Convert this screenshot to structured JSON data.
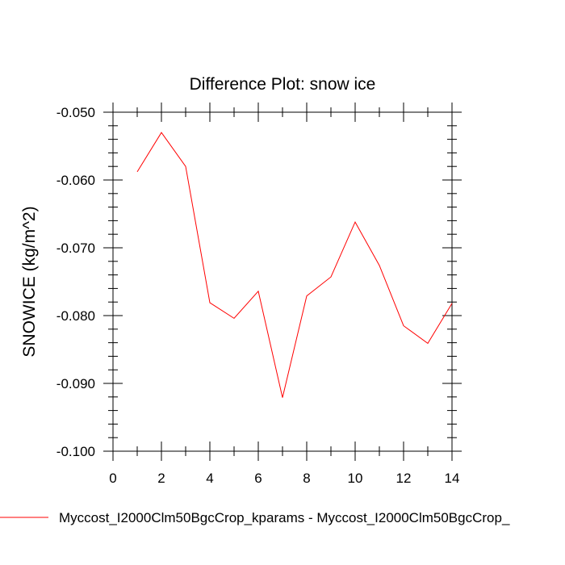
{
  "chart_data": {
    "type": "line",
    "title": "Difference Plot: snow ice",
    "xlabel": "",
    "ylabel": "SNOWICE  (kg/m^2)",
    "xlim": [
      0,
      14
    ],
    "ylim": [
      -0.1,
      -0.05
    ],
    "x_ticks": [
      0,
      2,
      4,
      6,
      8,
      10,
      12,
      14
    ],
    "x_tick_labels": [
      "0",
      "2",
      "4",
      "6",
      "8",
      "10",
      "12",
      "14"
    ],
    "x_minor_step": 1,
    "y_ticks": [
      -0.1,
      -0.09,
      -0.08,
      -0.07,
      -0.06,
      -0.05
    ],
    "y_tick_labels": [
      "-0.100",
      "-0.090",
      "-0.080",
      "-0.070",
      "-0.060",
      "-0.050"
    ],
    "y_minor_step": 0.002,
    "grid": false,
    "legend_position": "bottom",
    "series": [
      {
        "name": "Myccost_I2000Clm50BgcCrop_kparams - Myccost_I2000Clm50BgcCrop_",
        "color": "#ff0000",
        "x": [
          1,
          2,
          3,
          4,
          5,
          6,
          7,
          8,
          9,
          10,
          11,
          12,
          13,
          14
        ],
        "values": [
          -0.0588,
          -0.053,
          -0.058,
          -0.0781,
          -0.0804,
          -0.0764,
          -0.0921,
          -0.0771,
          -0.0743,
          -0.0662,
          -0.0726,
          -0.0815,
          -0.0841,
          -0.0782
        ]
      }
    ]
  }
}
